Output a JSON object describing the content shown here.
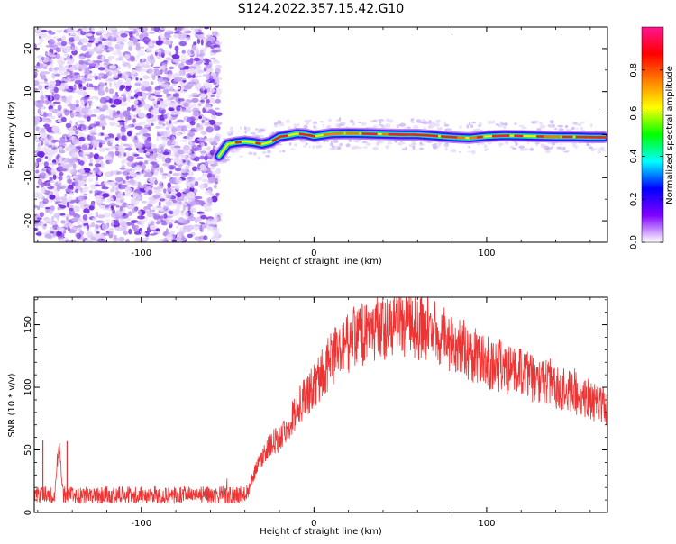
{
  "title": "S124.2022.357.15.42.G10",
  "chart_data": [
    {
      "type": "heatmap",
      "xlabel": "Height of straight line (km)",
      "ylabel": "Frequency (Hz)",
      "xlim": [
        -162,
        170
      ],
      "ylim": [
        -25,
        25
      ],
      "xticks": [
        -100,
        0,
        100
      ],
      "yticks": [
        -20,
        -10,
        0,
        10,
        20
      ],
      "xtick_labels": [
        "-100",
        "0",
        "100"
      ],
      "ytick_labels": [
        "-20",
        "-10",
        "0",
        "10",
        "20"
      ],
      "noise_region_x": [
        -162,
        -55
      ],
      "trace": {
        "x": [
          -55,
          -50,
          -45,
          -40,
          -35,
          -30,
          -25,
          -20,
          -15,
          -10,
          -5,
          0,
          10,
          20,
          30,
          40,
          50,
          60,
          70,
          80,
          90,
          100,
          110,
          120,
          130,
          140,
          150,
          160,
          168
        ],
        "y": [
          -5,
          -2.2,
          -1.8,
          -1.6,
          -1.8,
          -2.2,
          -1.7,
          -0.5,
          -0.2,
          0.2,
          0.1,
          -0.4,
          0.2,
          0.3,
          0.2,
          0.1,
          0,
          0,
          -0.3,
          -0.6,
          -0.8,
          -0.4,
          -0.2,
          -0.3,
          -0.4,
          -0.5,
          -0.5,
          -0.6,
          -0.6
        ]
      },
      "colorbar": {
        "label": "Normalized spectral amplitude",
        "range": [
          0,
          1
        ],
        "ticks": [
          0.0,
          0.2,
          0.4,
          0.6,
          0.8
        ],
        "tick_labels": [
          "0.0",
          "0.2",
          "0.4",
          "0.6",
          "0.8"
        ],
        "colors": [
          "#ffffff",
          "#7f00ff",
          "#0000ff",
          "#00ffff",
          "#00ff00",
          "#ffff00",
          "#ff7f00",
          "#ff0000",
          "#ff1493"
        ]
      }
    },
    {
      "type": "line",
      "xlabel": "Height of straight line (km)",
      "ylabel": "SNR (10 * v/v)",
      "xlim": [
        -162,
        170
      ],
      "ylim": [
        0,
        172
      ],
      "xticks": [
        -100,
        0,
        100
      ],
      "yticks": [
        0,
        50,
        100,
        150
      ],
      "xtick_labels": [
        "-100",
        "0",
        "100"
      ],
      "ytick_labels": [
        "0",
        "50",
        "100",
        "150"
      ],
      "series": [
        {
          "color": "#ee3333",
          "x": [
            -162,
            -155,
            -150,
            -148,
            -145,
            -140,
            -135,
            -130,
            -120,
            -110,
            -100,
            -90,
            -80,
            -70,
            -60,
            -50,
            -40,
            -38,
            -35,
            -30,
            -25,
            -20,
            -15,
            -10,
            -5,
            0,
            5,
            10,
            15,
            20,
            25,
            30,
            35,
            40,
            45,
            50,
            55,
            60,
            65,
            70,
            75,
            80,
            85,
            90,
            95,
            100,
            105,
            110,
            115,
            120,
            125,
            130,
            135,
            140,
            145,
            150,
            155,
            160,
            165,
            170
          ],
          "y": [
            14,
            14,
            14,
            55,
            14,
            14,
            14,
            14,
            14,
            14,
            14,
            14,
            14,
            14,
            14,
            14,
            14,
            18,
            30,
            45,
            55,
            60,
            70,
            82,
            92,
            100,
            112,
            122,
            130,
            135,
            140,
            143,
            145,
            147,
            150,
            152,
            150,
            148,
            145,
            143,
            140,
            136,
            132,
            128,
            124,
            120,
            118,
            115,
            113,
            111,
            108,
            105,
            103,
            100,
            98,
            96,
            93,
            90,
            87,
            84
          ]
        }
      ],
      "spikes": [
        {
          "x": -157,
          "y": 58
        },
        {
          "x": -143,
          "y": 57
        }
      ]
    }
  ]
}
